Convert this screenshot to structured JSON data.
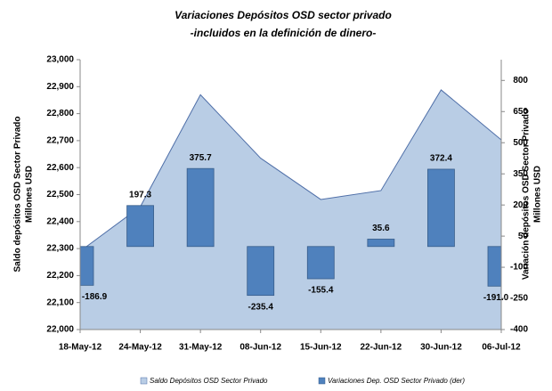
{
  "chart_data": {
    "type": "area_bar",
    "title": "Variaciones Depósitos OSD sector privado",
    "subtitle": "-incluidos en la definición de dinero-",
    "ylabel": [
      "Saldo depósitos OSD Sector Privado",
      "Millones USD"
    ],
    "y2label": [
      "Variación depósitos OSD Sector Privado",
      "Millones USD"
    ],
    "categories": [
      "18-May-12",
      "24-May-12",
      "31-May-12",
      "08-Jun-12",
      "15-Jun-12",
      "22-Jun-12",
      "30-Jun-12",
      "06-Jul-12"
    ],
    "series": [
      {
        "name": "Saldo Depósitos OSD Sector Privado",
        "type": "area",
        "color": "#b9cde5",
        "line_color": "#4f6fa8",
        "values": [
          22290,
          22455,
          22870,
          22635,
          22482,
          22515,
          22888,
          22703
        ]
      },
      {
        "name": "Variaciones Dep. OSD Sector Privado (der)",
        "type": "bar",
        "axis": "y2",
        "color": "#4f81bd",
        "values": [
          -186.9,
          197.3,
          375.7,
          -235.4,
          -155.4,
          35.6,
          372.4,
          -191.0
        ],
        "value_labels": [
          "-186.9",
          "197.3",
          "375.7",
          "-235.4",
          "-155.4",
          "35.6",
          "372.4",
          "-191.0"
        ]
      }
    ],
    "ylim": [
      22000,
      23000
    ],
    "yticks": [
      {
        "value": 22000,
        "label": "22,000"
      },
      {
        "value": 22100,
        "label": "22,100"
      },
      {
        "value": 22200,
        "label": "22,200"
      },
      {
        "value": 22300,
        "label": "22,300"
      },
      {
        "value": 22400,
        "label": "22,400"
      },
      {
        "value": 22500,
        "label": "22,500"
      },
      {
        "value": 22600,
        "label": "22,600"
      },
      {
        "value": 22700,
        "label": "22,700"
      },
      {
        "value": 22800,
        "label": "22,800"
      },
      {
        "value": 22900,
        "label": "22,900"
      },
      {
        "value": 23000,
        "label": "23,000"
      }
    ],
    "y2lim": [
      -400,
      900
    ],
    "y2ticks": [
      -400,
      -250,
      -100,
      50,
      200,
      350,
      500,
      650,
      800
    ],
    "legend": "bottom"
  }
}
